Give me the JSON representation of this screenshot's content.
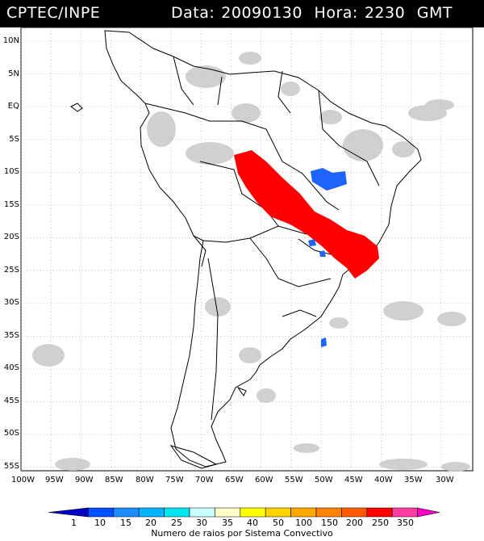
{
  "header": {
    "organization": "CPTEC/INPE",
    "date_label": "Data:",
    "date_value": "20090130",
    "time_label": "Hora:",
    "time_value": "2230",
    "time_zone": "GMT"
  },
  "map": {
    "lat_labels": [
      "10N",
      "5N",
      "EQ",
      "5S",
      "10S",
      "15S",
      "20S",
      "25S",
      "30S",
      "35S",
      "40S",
      "45S",
      "50S",
      "55S"
    ],
    "lon_labels": [
      "100W",
      "95W",
      "90W",
      "85W",
      "80W",
      "75W",
      "70W",
      "65W",
      "60W",
      "55W",
      "50W",
      "45W",
      "40W",
      "35W",
      "30W"
    ],
    "colors": {
      "land_outline": "#000000",
      "grid": "#9a9a9a",
      "cloud": "#c8c8c8",
      "lightning_high": "#ff0000",
      "lightning_low": "#1e64ff"
    }
  },
  "legend": {
    "title": "Numero de raios por Sistema Convectivo",
    "values": [
      "1",
      "10",
      "15",
      "20",
      "25",
      "30",
      "35",
      "40",
      "50",
      "100",
      "150",
      "200",
      "250",
      "350"
    ],
    "colors": [
      "#0000c8",
      "#0050ff",
      "#1e8cff",
      "#00b4ff",
      "#00e6f0",
      "#c8ffff",
      "#ffffc8",
      "#ffff00",
      "#ffd200",
      "#ffaa00",
      "#ff8200",
      "#ff5a00",
      "#ff0000",
      "#ff3ca0",
      "#ff00c8"
    ]
  }
}
